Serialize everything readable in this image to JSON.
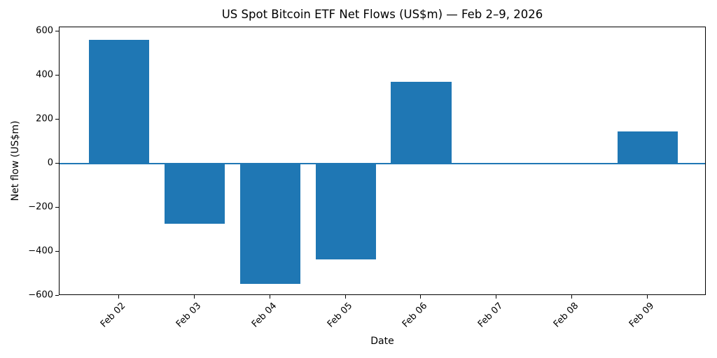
{
  "chart_data": {
    "type": "bar",
    "title": "US Spot Bitcoin ETF Net Flows (US$m) — Feb 2–9, 2026",
    "xlabel": "Date",
    "ylabel": "Net flow (US$m)",
    "categories": [
      "Feb 02",
      "Feb 03",
      "Feb 04",
      "Feb 05",
      "Feb 06",
      "Feb 07",
      "Feb 08",
      "Feb 09"
    ],
    "values": [
      562,
      -272,
      -545,
      -434,
      371,
      0,
      0,
      145
    ],
    "ylim": [
      -600,
      619
    ],
    "yticks": [
      600,
      400,
      200,
      0,
      -200,
      -400,
      -600
    ],
    "ytick_labels": [
      "600",
      "400",
      "200",
      "0",
      "−200",
      "−400",
      "−600"
    ],
    "zero_line": true,
    "grid": false,
    "legend": null,
    "colors": {
      "bar": "#1f77b4",
      "zero_line": "#1f77b4"
    }
  }
}
